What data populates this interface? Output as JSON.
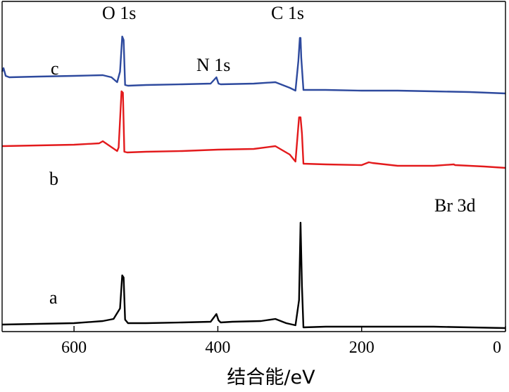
{
  "chart_data": {
    "type": "line",
    "title": "",
    "xlabel": "结合能/eV",
    "ylabel": "",
    "xlim": [
      700,
      0
    ],
    "x_reversed": true,
    "x_ticks": [
      600,
      400,
      200,
      0
    ],
    "y_ticks_shown": false,
    "grid": false,
    "series": [
      {
        "name": "a",
        "color": "#000000",
        "x": [
          700,
          650,
          600,
          560,
          545,
          536,
          533,
          531,
          529,
          525,
          500,
          450,
          410,
          402,
          399,
          396,
          380,
          340,
          320,
          305,
          292,
          287,
          285,
          283,
          281,
          250,
          200,
          150,
          100,
          50,
          0
        ],
        "y": [
          5,
          6,
          7,
          10,
          13,
          28,
          75,
          72,
          12,
          7,
          7,
          8,
          9,
          20,
          11,
          8,
          9,
          10,
          13,
          7,
          4,
          40,
          150,
          60,
          1,
          2,
          2,
          2,
          2,
          1,
          0
        ]
      },
      {
        "name": "b",
        "color": "#e31a1c",
        "x": [
          700,
          650,
          600,
          565,
          560,
          550,
          540,
          538,
          534,
          532,
          530,
          526,
          500,
          450,
          400,
          350,
          320,
          300,
          292,
          287,
          285,
          283,
          281,
          250,
          200,
          190,
          185,
          150,
          100,
          72,
          70,
          50,
          30,
          0
        ],
        "y": [
          127,
          128,
          129,
          131,
          134,
          127,
          120,
          125,
          205,
          203,
          119,
          118,
          119,
          120,
          122,
          123,
          127,
          115,
          105,
          168,
          168,
          145,
          102,
          101,
          100,
          104,
          103,
          99,
          99,
          101,
          100,
          99,
          98,
          96
        ],
        "y_offset": 135
      },
      {
        "name": "c",
        "color": "#2e4a9e",
        "x": [
          700,
          698,
          695,
          690,
          650,
          600,
          560,
          548,
          540,
          536,
          533,
          531,
          529,
          525,
          500,
          450,
          410,
          402,
          399,
          396,
          350,
          320,
          300,
          292,
          288,
          286,
          285,
          284,
          281,
          250,
          200,
          150,
          100,
          50,
          0
        ],
        "y": [
          160,
          165,
          154,
          152,
          153,
          154,
          155,
          152,
          145,
          160,
          210,
          205,
          141,
          140,
          141,
          142,
          143,
          152,
          143,
          142,
          143,
          145,
          137,
          133,
          175,
          208,
          208,
          180,
          134,
          134,
          133,
          133,
          132,
          131,
          129
        ],
        "y_offset": 270
      }
    ],
    "annotations": [
      {
        "text": "O 1s",
        "x": 533
      },
      {
        "text": "C 1s",
        "x": 285
      },
      {
        "text": "N 1s",
        "x": 400
      },
      {
        "text": "Br 3d",
        "x": 70
      }
    ]
  }
}
